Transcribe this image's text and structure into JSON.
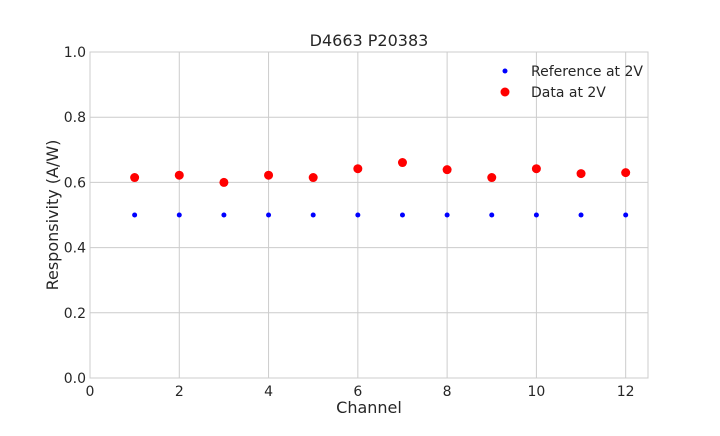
{
  "chart_data": {
    "type": "scatter",
    "title": "D4663 P20383",
    "xlabel": "Channel",
    "ylabel": "Responsivity (A/W)",
    "xlim": [
      0,
      12.5
    ],
    "ylim": [
      0,
      1.0
    ],
    "xticks": [
      "0",
      "2",
      "4",
      "6",
      "8",
      "10",
      "12"
    ],
    "yticks": [
      "0.0",
      "0.2",
      "0.4",
      "0.6",
      "0.8",
      "1.0"
    ],
    "grid": true,
    "legend_position": "top-right",
    "x": [
      1,
      2,
      3,
      4,
      5,
      6,
      7,
      8,
      9,
      10,
      11,
      12
    ],
    "series": [
      {
        "name": "Reference at 2V",
        "color": "#0000ff",
        "marker_size": "small",
        "values": [
          0.5,
          0.5,
          0.5,
          0.5,
          0.5,
          0.5,
          0.5,
          0.5,
          0.5,
          0.5,
          0.5,
          0.5
        ]
      },
      {
        "name": "Data at 2V",
        "color": "#ff0000",
        "marker_size": "large",
        "values": [
          0.615,
          0.622,
          0.6,
          0.622,
          0.615,
          0.642,
          0.661,
          0.639,
          0.615,
          0.642,
          0.627,
          0.63
        ]
      }
    ]
  }
}
